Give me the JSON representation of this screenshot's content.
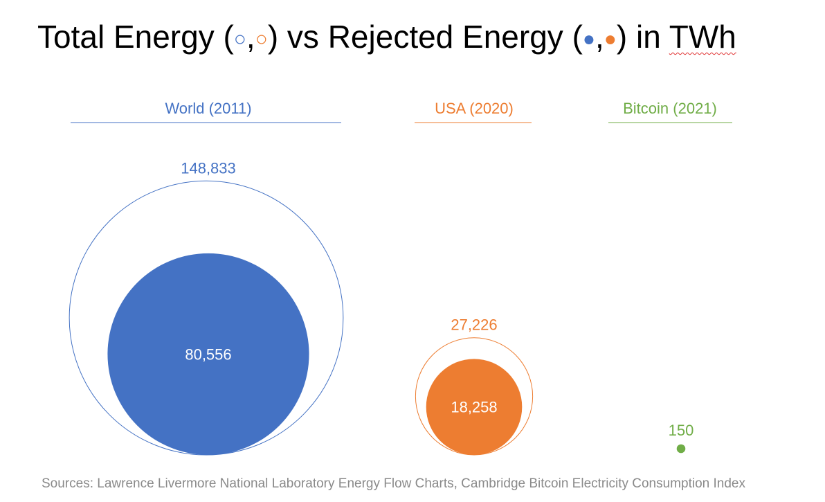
{
  "title": {
    "prefix": "Total Energy (",
    "sep1": ",",
    "mid": ") vs Rejected Energy (",
    "sep2": ",",
    "suffix_pre": ") in ",
    "unit": "TWh",
    "total_marker_glyph": "○",
    "rejected_marker_glyph": "●"
  },
  "colors": {
    "world": "#4472c4",
    "usa": "#ed7d31",
    "bitcoin": "#70ad47"
  },
  "chart_data": {
    "type": "bubble",
    "title": "Total Energy (○,○) vs Rejected Energy (●,●) in TWh",
    "unit": "TWh",
    "groups": [
      {
        "label": "World (2011)",
        "total": 148833,
        "rejected": 80556,
        "total_label": "148,833",
        "rejected_label": "80,556",
        "color": "#4472c4"
      },
      {
        "label": "USA (2020)",
        "total": 27226,
        "rejected": 18258,
        "total_label": "27,226",
        "rejected_label": "18,258",
        "color": "#ed7d31"
      },
      {
        "label": "Bitcoin (2021)",
        "total": 150,
        "total_label": "150",
        "color": "#70ad47"
      }
    ],
    "legend": "inline in title"
  },
  "source": "Sources: Lawrence Livermore National Laboratory Energy Flow Charts, Cambridge Bitcoin Electricity Consumption Index"
}
